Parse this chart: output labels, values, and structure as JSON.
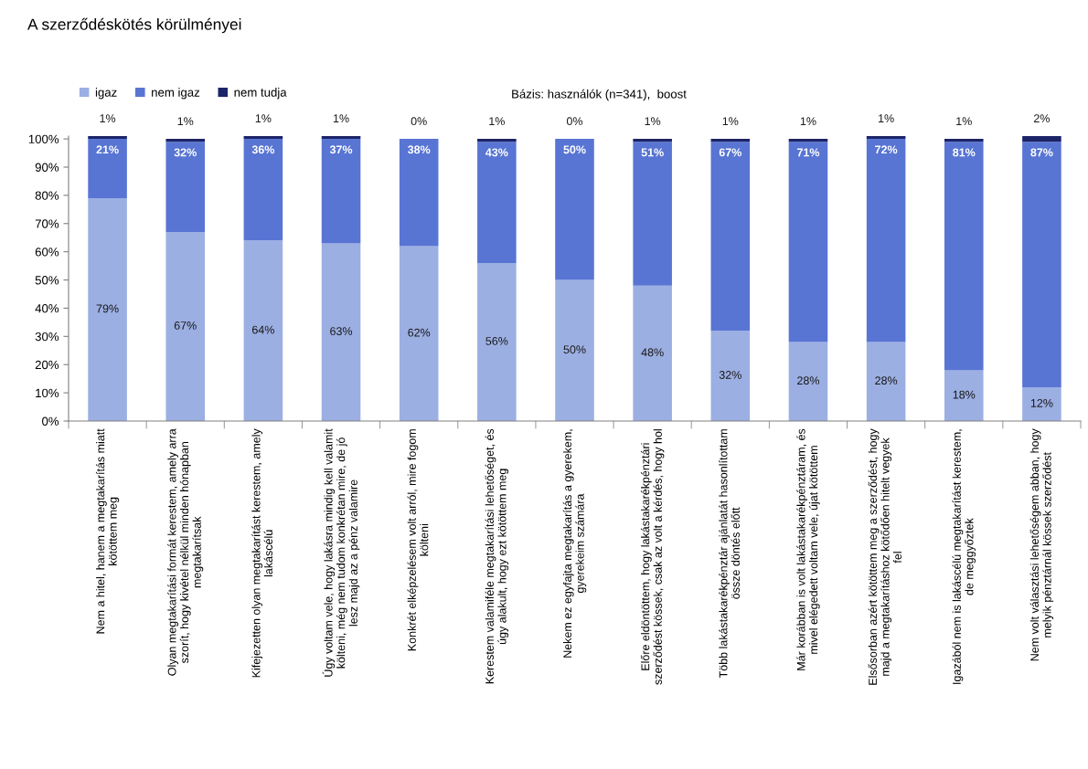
{
  "chart_data": {
    "type": "bar",
    "stacked": true,
    "title": "A szerződéskötés körülményei",
    "annotations": [
      "Bázis: használók (n=341),  boost"
    ],
    "categories": [
      "Nem a hitel, hanem a megtakarítás miatt\nkötöttem meg",
      "Olyan megtakarítási formát kerestem, amely arra\nszorít, hogy kivétel nélkül minden hónapban\nmegtakarítsak",
      "Kifejezetten olyan megtakarítást kerestem, amely\nlakáscélú",
      "Úgy voltam vele, hogy lakásra mindig kell valamit\nkölteni, még nem tudom konkrétan mire, de jó\nlesz majd az a pénz valamire",
      "Konkrét elképzelésem volt arról, mire fogom\nkölteni",
      "Kerestem valamiféle megtakarítási lehetőséget, és\núgy alakult, hogy ezt kötöttem meg",
      "Nekem ez egyfajta megtakarítás a gyerekem,\ngyerekeim számára",
      "Előre eldöntöttem, hogy lakástakarékpénztári\nszerződést kössek, csak az volt a kérdés, hogy hol",
      "Több lakástakarékpénztár ajánlatát hasonlítottam\nössze döntés előtt",
      "Már korábban is volt lakástakarékpénztáram, és\nmivel elégedett voltam vele, újat kötöttem",
      "Elsősorban azért kötöttem meg a szerződést, hogy\nmajd a megtakarításhoz kötődően hitelt vegyek\nfel",
      "Igazából nem is lakáscélú megtakarítást kerestem,\nde meggyőztek",
      "Nem volt választási lehetőségem abban, hogy\nmelyik pénztárnál kössek szerződést"
    ],
    "series": [
      {
        "name": "igaz",
        "color": "#9cafe3",
        "values": [
          79,
          67,
          64,
          63,
          62,
          56,
          50,
          48,
          32,
          28,
          28,
          18,
          12
        ],
        "value_labels": [
          "79%",
          "67%",
          "64%",
          "63%",
          "62%",
          "56%",
          "50%",
          "48%",
          "32%",
          "28%",
          "28%",
          "18%",
          "12%"
        ]
      },
      {
        "name": "nem igaz",
        "color": "#5875d3",
        "values": [
          21,
          32,
          36,
          37,
          38,
          43,
          50,
          51,
          67,
          71,
          72,
          81,
          87
        ],
        "value_labels": [
          "21%",
          "32%",
          "36%",
          "37%",
          "38%",
          "43%",
          "50%",
          "51%",
          "67%",
          "71%",
          "72%",
          "81%",
          "87%"
        ]
      },
      {
        "name": "nem tudja",
        "color": "#1c2468",
        "values": [
          1,
          1,
          1,
          1,
          0,
          1,
          0,
          1,
          1,
          1,
          1,
          1,
          2
        ],
        "value_labels": [
          "1%",
          "1%",
          "1%",
          "1%",
          "0%",
          "1%",
          "0%",
          "1%",
          "1%",
          "1%",
          "1%",
          "1%",
          "2%"
        ]
      }
    ],
    "ylim": [
      0,
      101
    ],
    "yticks": [
      {
        "value": 0,
        "label": "0%"
      },
      {
        "value": 10,
        "label": "10%"
      },
      {
        "value": 20,
        "label": "20%"
      },
      {
        "value": 30,
        "label": "30%"
      },
      {
        "value": 40,
        "label": "40%"
      },
      {
        "value": 50,
        "label": "50%"
      },
      {
        "value": 60,
        "label": "60%"
      },
      {
        "value": 70,
        "label": "70%"
      },
      {
        "value": 80,
        "label": "80%"
      },
      {
        "value": 90,
        "label": "90%"
      },
      {
        "value": 100,
        "label": "100%"
      }
    ],
    "legend": "top left"
  }
}
